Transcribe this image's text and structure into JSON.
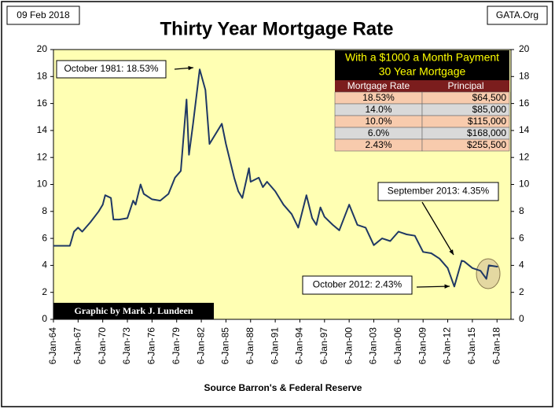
{
  "chart_data": {
    "type": "line",
    "title": "Thirty Year Mortgage Rate",
    "date": "09 Feb 2018",
    "site": "GATA.Org",
    "x_label": "Source Barron's & Federal Reserve",
    "credit": "Graphic by Mark J. Lundeen",
    "annotations": [
      "October 1981: 18.53%",
      "September 2013: 4.35%",
      "October 2012: 2.43%"
    ],
    "table": {
      "title": [
        "With a $1000 a Month Payment",
        "30 Year Mortgage"
      ],
      "header": [
        "Mortgage Rate",
        "Principal"
      ],
      "rows": [
        [
          "18.53%",
          "$64,500"
        ],
        [
          "14.0%",
          "$85,000"
        ],
        [
          "10.0%",
          "$115,000"
        ],
        [
          "6.0%",
          "$168,000"
        ],
        [
          "2.43%",
          "$255,500"
        ]
      ]
    },
    "x": [
      1964,
      1966,
      1966.5,
      1967,
      1967.5,
      1968.5,
      1969.5,
      1970,
      1970.3,
      1971,
      1971.3,
      1972,
      1973,
      1973.7,
      1974,
      1974.6,
      1975,
      1976,
      1977,
      1978,
      1978.8,
      1979.5,
      1980.2,
      1980.5,
      1981,
      1981.8,
      1982.5,
      1983,
      1984.5,
      1985,
      1986,
      1986.5,
      1987,
      1987.8,
      1988,
      1989,
      1989.5,
      1990,
      1991,
      1992,
      1993,
      1993.8,
      1994.8,
      1995.5,
      1996,
      1996.5,
      1997,
      1998,
      1998.8,
      2000,
      2001,
      2002,
      2003,
      2004,
      2005,
      2006,
      2007,
      2008,
      2009,
      2010,
      2011,
      2012,
      2012.8,
      2013.7,
      2014,
      2015,
      2016,
      2016.7,
      2017,
      2018.1
    ],
    "series": [
      {
        "color": "#1f3864",
        "values": [
          5.45,
          5.45,
          6.5,
          6.8,
          6.5,
          7.2,
          8.0,
          8.5,
          9.2,
          9.0,
          7.4,
          7.4,
          7.5,
          8.8,
          8.5,
          10.0,
          9.3,
          8.9,
          8.8,
          9.3,
          10.5,
          11.0,
          16.3,
          12.2,
          14.5,
          18.53,
          17.0,
          13.0,
          14.5,
          13.0,
          10.5,
          9.5,
          9.0,
          11.2,
          10.2,
          10.5,
          9.8,
          10.2,
          9.5,
          8.5,
          7.8,
          6.8,
          9.2,
          7.5,
          7.0,
          8.3,
          7.6,
          7.0,
          6.6,
          8.5,
          7.0,
          6.8,
          5.5,
          6.0,
          5.8,
          6.5,
          6.3,
          6.2,
          5.0,
          4.9,
          4.5,
          3.8,
          2.43,
          4.35,
          4.3,
          3.8,
          3.6,
          3.0,
          4.0,
          3.9
        ]
      }
    ],
    "xlim": [
      1964,
      2019.7
    ],
    "xticks": [
      {
        "value": 1964,
        "label": "6-Jan-64"
      },
      {
        "value": 1967,
        "label": "6-Jan-67"
      },
      {
        "value": 1970,
        "label": "6-Jan-70"
      },
      {
        "value": 1973,
        "label": "6-Jan-73"
      },
      {
        "value": 1976,
        "label": "6-Jan-76"
      },
      {
        "value": 1979,
        "label": "6-Jan-79"
      },
      {
        "value": 1982,
        "label": "6-Jan-82"
      },
      {
        "value": 1985,
        "label": "6-Jan-85"
      },
      {
        "value": 1988,
        "label": "6-Jan-88"
      },
      {
        "value": 1991,
        "label": "6-Jan-91"
      },
      {
        "value": 1994,
        "label": "6-Jan-94"
      },
      {
        "value": 1997,
        "label": "6-Jan-97"
      },
      {
        "value": 2000,
        "label": "6-Jan-00"
      },
      {
        "value": 2003,
        "label": "6-Jan-03"
      },
      {
        "value": 2006,
        "label": "6-Jan-06"
      },
      {
        "value": 2009,
        "label": "6-Jan-09"
      },
      {
        "value": 2012,
        "label": "6-Jan-12"
      },
      {
        "value": 2015,
        "label": "6-Jan-15"
      },
      {
        "value": 2018,
        "label": "6-Jan-18"
      }
    ],
    "ylim": [
      0,
      20
    ],
    "yticks": [
      0,
      2,
      4,
      6,
      8,
      10,
      12,
      14,
      16,
      18,
      20
    ],
    "grid": false,
    "plot_background": "#ffffb3"
  }
}
